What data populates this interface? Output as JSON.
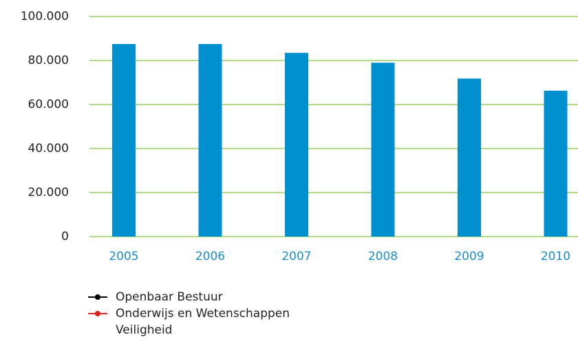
{
  "chart_data": {
    "type": "bar",
    "categories": [
      "2005",
      "2006",
      "2007",
      "2008",
      "2009",
      "2010"
    ],
    "values": [
      87500,
      87500,
      83500,
      79000,
      71800,
      66300
    ],
    "color": "#0090d0",
    "ylim": [
      0,
      100000
    ],
    "yticks": [
      0,
      {
        "value": 20000,
        "label": "20.000"
      },
      {
        "value": 40000,
        "label": "40.000"
      },
      {
        "value": 60000,
        "label": "60.000"
      },
      {
        "value": 80000,
        "label": "80.000"
      },
      {
        "value": 100000,
        "label": "100.000"
      }
    ],
    "grid": true,
    "grid_color": "#7dc242",
    "legend": [
      {
        "name": "Openbaar Bestuur",
        "color": "#000000"
      },
      {
        "name": "Onderwijs en Wetenschappen",
        "color": "#e2231a"
      },
      {
        "name": "Veiligheid"
      }
    ]
  }
}
